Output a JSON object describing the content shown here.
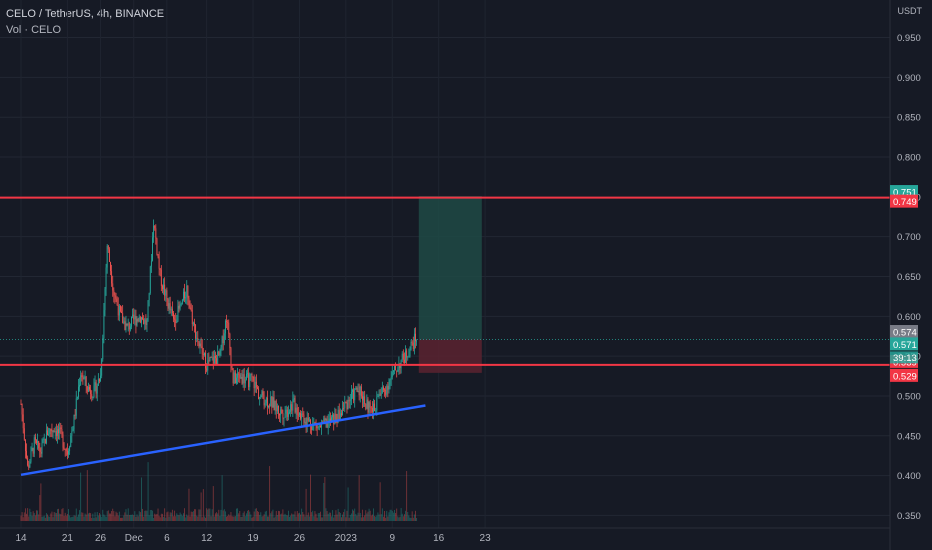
{
  "header": {
    "title": "CELO / TetherUS, 4h, BINANCE",
    "volume_label": "Vol · CELO",
    "unit": "USDT"
  },
  "colors": {
    "background": "#161a25",
    "up": "#26a69a",
    "down": "#ef5350",
    "resistance_line": "#f23645",
    "trendline": "#2962ff",
    "target_zone": "#1f4a45",
    "stop_zone": "#5a2330"
  },
  "chart_data": {
    "type": "candlestick",
    "symbol": "CELO / TetherUS",
    "timeframe": "4h",
    "exchange": "BINANCE",
    "y_ticks": [
      0.35,
      0.4,
      0.45,
      0.5,
      0.55,
      0.6,
      0.65,
      0.7,
      0.75,
      0.8,
      0.85,
      0.9,
      0.95
    ],
    "y_tick_labels": [
      "0.350",
      "0.400",
      "0.450",
      "0.500",
      "0.550",
      "0.600",
      "0.650",
      "0.700",
      "0.750",
      "0.800",
      "0.850",
      "0.900",
      "0.950"
    ],
    "ylim": [
      0.343,
      0.962
    ],
    "x_ticks": [
      {
        "label": "14",
        "day": 0
      },
      {
        "label": "21",
        "day": 7
      },
      {
        "label": "26",
        "day": 12
      },
      {
        "label": "Dec",
        "day": 17
      },
      {
        "label": "6",
        "day": 22
      },
      {
        "label": "12",
        "day": 28
      },
      {
        "label": "19",
        "day": 35
      },
      {
        "label": "26",
        "day": 42
      },
      {
        "label": "2023",
        "day": 49
      },
      {
        "label": "9",
        "day": 56
      },
      {
        "label": "16",
        "day": 63
      },
      {
        "label": "23",
        "day": 70
      }
    ],
    "price_path": [
      [
        0,
        0.49
      ],
      [
        1,
        0.41
      ],
      [
        2,
        0.44
      ],
      [
        3,
        0.43
      ],
      [
        4,
        0.455
      ],
      [
        5,
        0.46
      ],
      [
        6,
        0.45
      ],
      [
        7,
        0.43
      ],
      [
        8,
        0.47
      ],
      [
        9,
        0.53
      ],
      [
        10,
        0.51
      ],
      [
        11,
        0.505
      ],
      [
        12,
        0.525
      ],
      [
        13,
        0.69
      ],
      [
        14,
        0.63
      ],
      [
        15,
        0.6
      ],
      [
        16,
        0.585
      ],
      [
        17,
        0.595
      ],
      [
        18,
        0.6
      ],
      [
        19,
        0.59
      ],
      [
        20,
        0.72
      ],
      [
        21,
        0.65
      ],
      [
        22,
        0.62
      ],
      [
        23,
        0.595
      ],
      [
        24,
        0.61
      ],
      [
        25,
        0.635
      ],
      [
        26,
        0.59
      ],
      [
        27,
        0.56
      ],
      [
        28,
        0.54
      ],
      [
        29,
        0.545
      ],
      [
        30,
        0.55
      ],
      [
        31,
        0.6
      ],
      [
        32,
        0.52
      ],
      [
        33,
        0.525
      ],
      [
        34,
        0.52
      ],
      [
        35,
        0.52
      ],
      [
        36,
        0.5
      ],
      [
        37,
        0.495
      ],
      [
        38,
        0.49
      ],
      [
        39,
        0.48
      ],
      [
        40,
        0.48
      ],
      [
        41,
        0.49
      ],
      [
        42,
        0.48
      ],
      [
        43,
        0.47
      ],
      [
        44,
        0.465
      ],
      [
        45,
        0.46
      ],
      [
        46,
        0.465
      ],
      [
        47,
        0.47
      ],
      [
        48,
        0.475
      ],
      [
        49,
        0.49
      ],
      [
        50,
        0.5
      ],
      [
        51,
        0.51
      ],
      [
        52,
        0.49
      ],
      [
        53,
        0.48
      ],
      [
        54,
        0.5
      ],
      [
        55,
        0.51
      ],
      [
        56,
        0.525
      ],
      [
        57,
        0.54
      ],
      [
        58,
        0.55
      ],
      [
        59,
        0.565
      ],
      [
        59.7,
        0.574
      ]
    ],
    "annotations": {
      "resistance_top": 0.749,
      "resistance_mid": 0.539,
      "trendline": {
        "start": {
          "day": 0,
          "price": 0.401
        },
        "end": {
          "day": 61,
          "price": 0.488
        }
      },
      "entry": 0.571,
      "target": 0.751,
      "stop": 0.529,
      "position_start_day": 60,
      "position_end_day": 69.5
    },
    "price_labels": [
      {
        "value": 0.751,
        "text": "0.751",
        "color": "#26a69a"
      },
      {
        "value": 0.749,
        "text": "0.749",
        "color": "#f23645"
      },
      {
        "value": 0.574,
        "text": "0.574",
        "color": "#787b86"
      },
      {
        "value": 0.571,
        "text": "0.571",
        "color": "#26a69a"
      },
      {
        "value": 0.539,
        "text": "0.539",
        "color": "#f23645"
      },
      {
        "value": 0.529,
        "text": "0.529",
        "color": "#f23645"
      }
    ],
    "countdown": "39:13"
  }
}
